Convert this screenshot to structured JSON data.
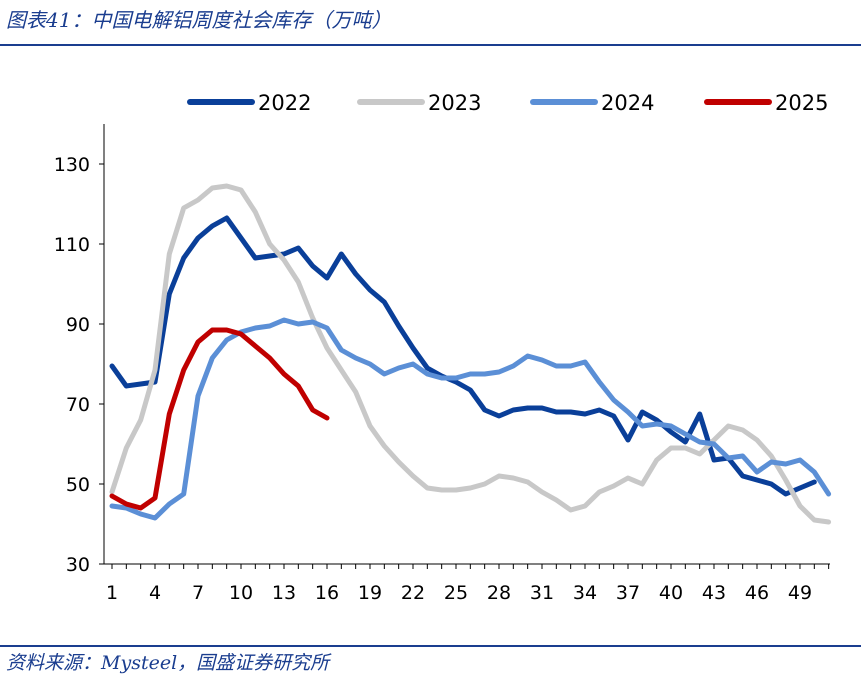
{
  "header": {
    "title": "图表41：中国电解铝周度社会库存（万吨）"
  },
  "footer": {
    "source": "资料来源：Mysteel，国盛证券研究所"
  },
  "chart_data": {
    "type": "line",
    "title": "图表41：中国电解铝周度社会库存（万吨）",
    "xlabel": "",
    "ylabel": "",
    "xlim": [
      1,
      51
    ],
    "ylim": [
      30,
      140
    ],
    "x_ticks": [
      1,
      4,
      7,
      10,
      13,
      16,
      19,
      22,
      25,
      28,
      31,
      34,
      37,
      40,
      43,
      46,
      49
    ],
    "y_ticks": [
      30,
      50,
      70,
      90,
      110,
      130
    ],
    "legend_position": "top",
    "series": [
      {
        "name": "2022",
        "color": "#0a3f99",
        "values": [
          79.5,
          74.5,
          75.0,
          75.5,
          97.5,
          106.5,
          111.5,
          114.5,
          116.5,
          111.5,
          106.5,
          107.0,
          107.5,
          109.0,
          104.5,
          101.5,
          107.5,
          102.5,
          98.5,
          95.5,
          89.5,
          84.0,
          79.0,
          77.0,
          75.5,
          73.5,
          68.5,
          67.0,
          68.5,
          69.0,
          69.0,
          68.0,
          68.0,
          67.5,
          68.5,
          67.0,
          61.0,
          68.0,
          66.0,
          63.0,
          60.5,
          67.5,
          56.0,
          56.5,
          52.0,
          51.0,
          50.0,
          47.5,
          49.0,
          50.5
        ]
      },
      {
        "name": "2023",
        "color": "#c8c8c8",
        "values": [
          48.0,
          59.0,
          66.0,
          78.5,
          107.5,
          119.0,
          121.0,
          124.0,
          124.5,
          123.5,
          118.0,
          110.0,
          106.0,
          100.5,
          91.5,
          84.0,
          78.5,
          73.0,
          64.5,
          59.5,
          55.5,
          52.0,
          49.0,
          48.5,
          48.5,
          49.0,
          50.0,
          52.0,
          51.5,
          50.5,
          48.0,
          46.0,
          43.5,
          44.5,
          48.0,
          49.5,
          51.5,
          50.0,
          56.0,
          59.0,
          59.0,
          57.5,
          61.0,
          64.5,
          63.5,
          61.0,
          57.0,
          51.0,
          44.5,
          41.0,
          40.5
        ]
      },
      {
        "name": "2024",
        "color": "#5b8fd6",
        "values": [
          44.5,
          44.0,
          42.5,
          41.5,
          45.0,
          47.5,
          72.0,
          81.5,
          86.0,
          88.0,
          89.0,
          89.5,
          91.0,
          90.0,
          90.5,
          89.0,
          83.5,
          81.5,
          80.0,
          77.5,
          79.0,
          80.0,
          77.5,
          76.5,
          76.5,
          77.5,
          77.5,
          78.0,
          79.5,
          82.0,
          81.0,
          79.5,
          79.5,
          80.5,
          75.5,
          71.0,
          68.0,
          64.5,
          65.0,
          64.5,
          62.5,
          60.5,
          60.0,
          56.5,
          57.0,
          53.0,
          55.5,
          55.0,
          56.0,
          53.0,
          47.5
        ]
      },
      {
        "name": "2025",
        "color": "#c00000",
        "values": [
          47.0,
          45.0,
          44.0,
          46.5,
          67.5,
          78.5,
          85.5,
          88.5,
          88.5,
          87.5,
          84.5,
          81.5,
          77.5,
          74.5,
          68.5,
          66.5
        ]
      }
    ]
  }
}
